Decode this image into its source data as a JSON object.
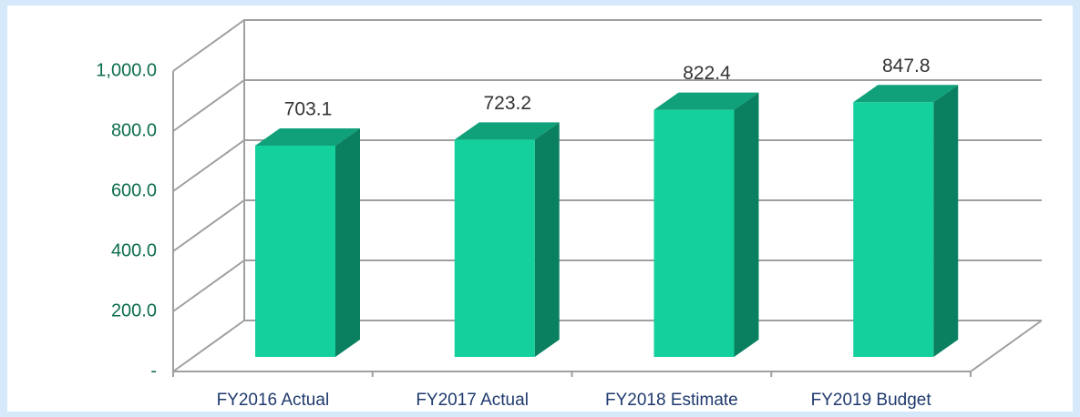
{
  "chart_data": {
    "type": "bar3d",
    "categories": [
      "FY2016 Actual",
      "FY2017 Actual",
      "FY2018 Estimate",
      "FY2019 Budget"
    ],
    "values": [
      703.1,
      723.2,
      822.4,
      847.8
    ],
    "color": "#14d09c",
    "ylim": [
      0,
      1000
    ],
    "yticks": [
      {
        "value": 0,
        "label": "-"
      },
      {
        "value": 200,
        "label": "200.0"
      },
      {
        "value": 400,
        "label": "400.0"
      },
      {
        "value": 600,
        "label": "600.0"
      },
      {
        "value": 800,
        "label": "800.0"
      },
      {
        "value": 1000,
        "label": "1,000.0"
      }
    ],
    "grid": true
  }
}
